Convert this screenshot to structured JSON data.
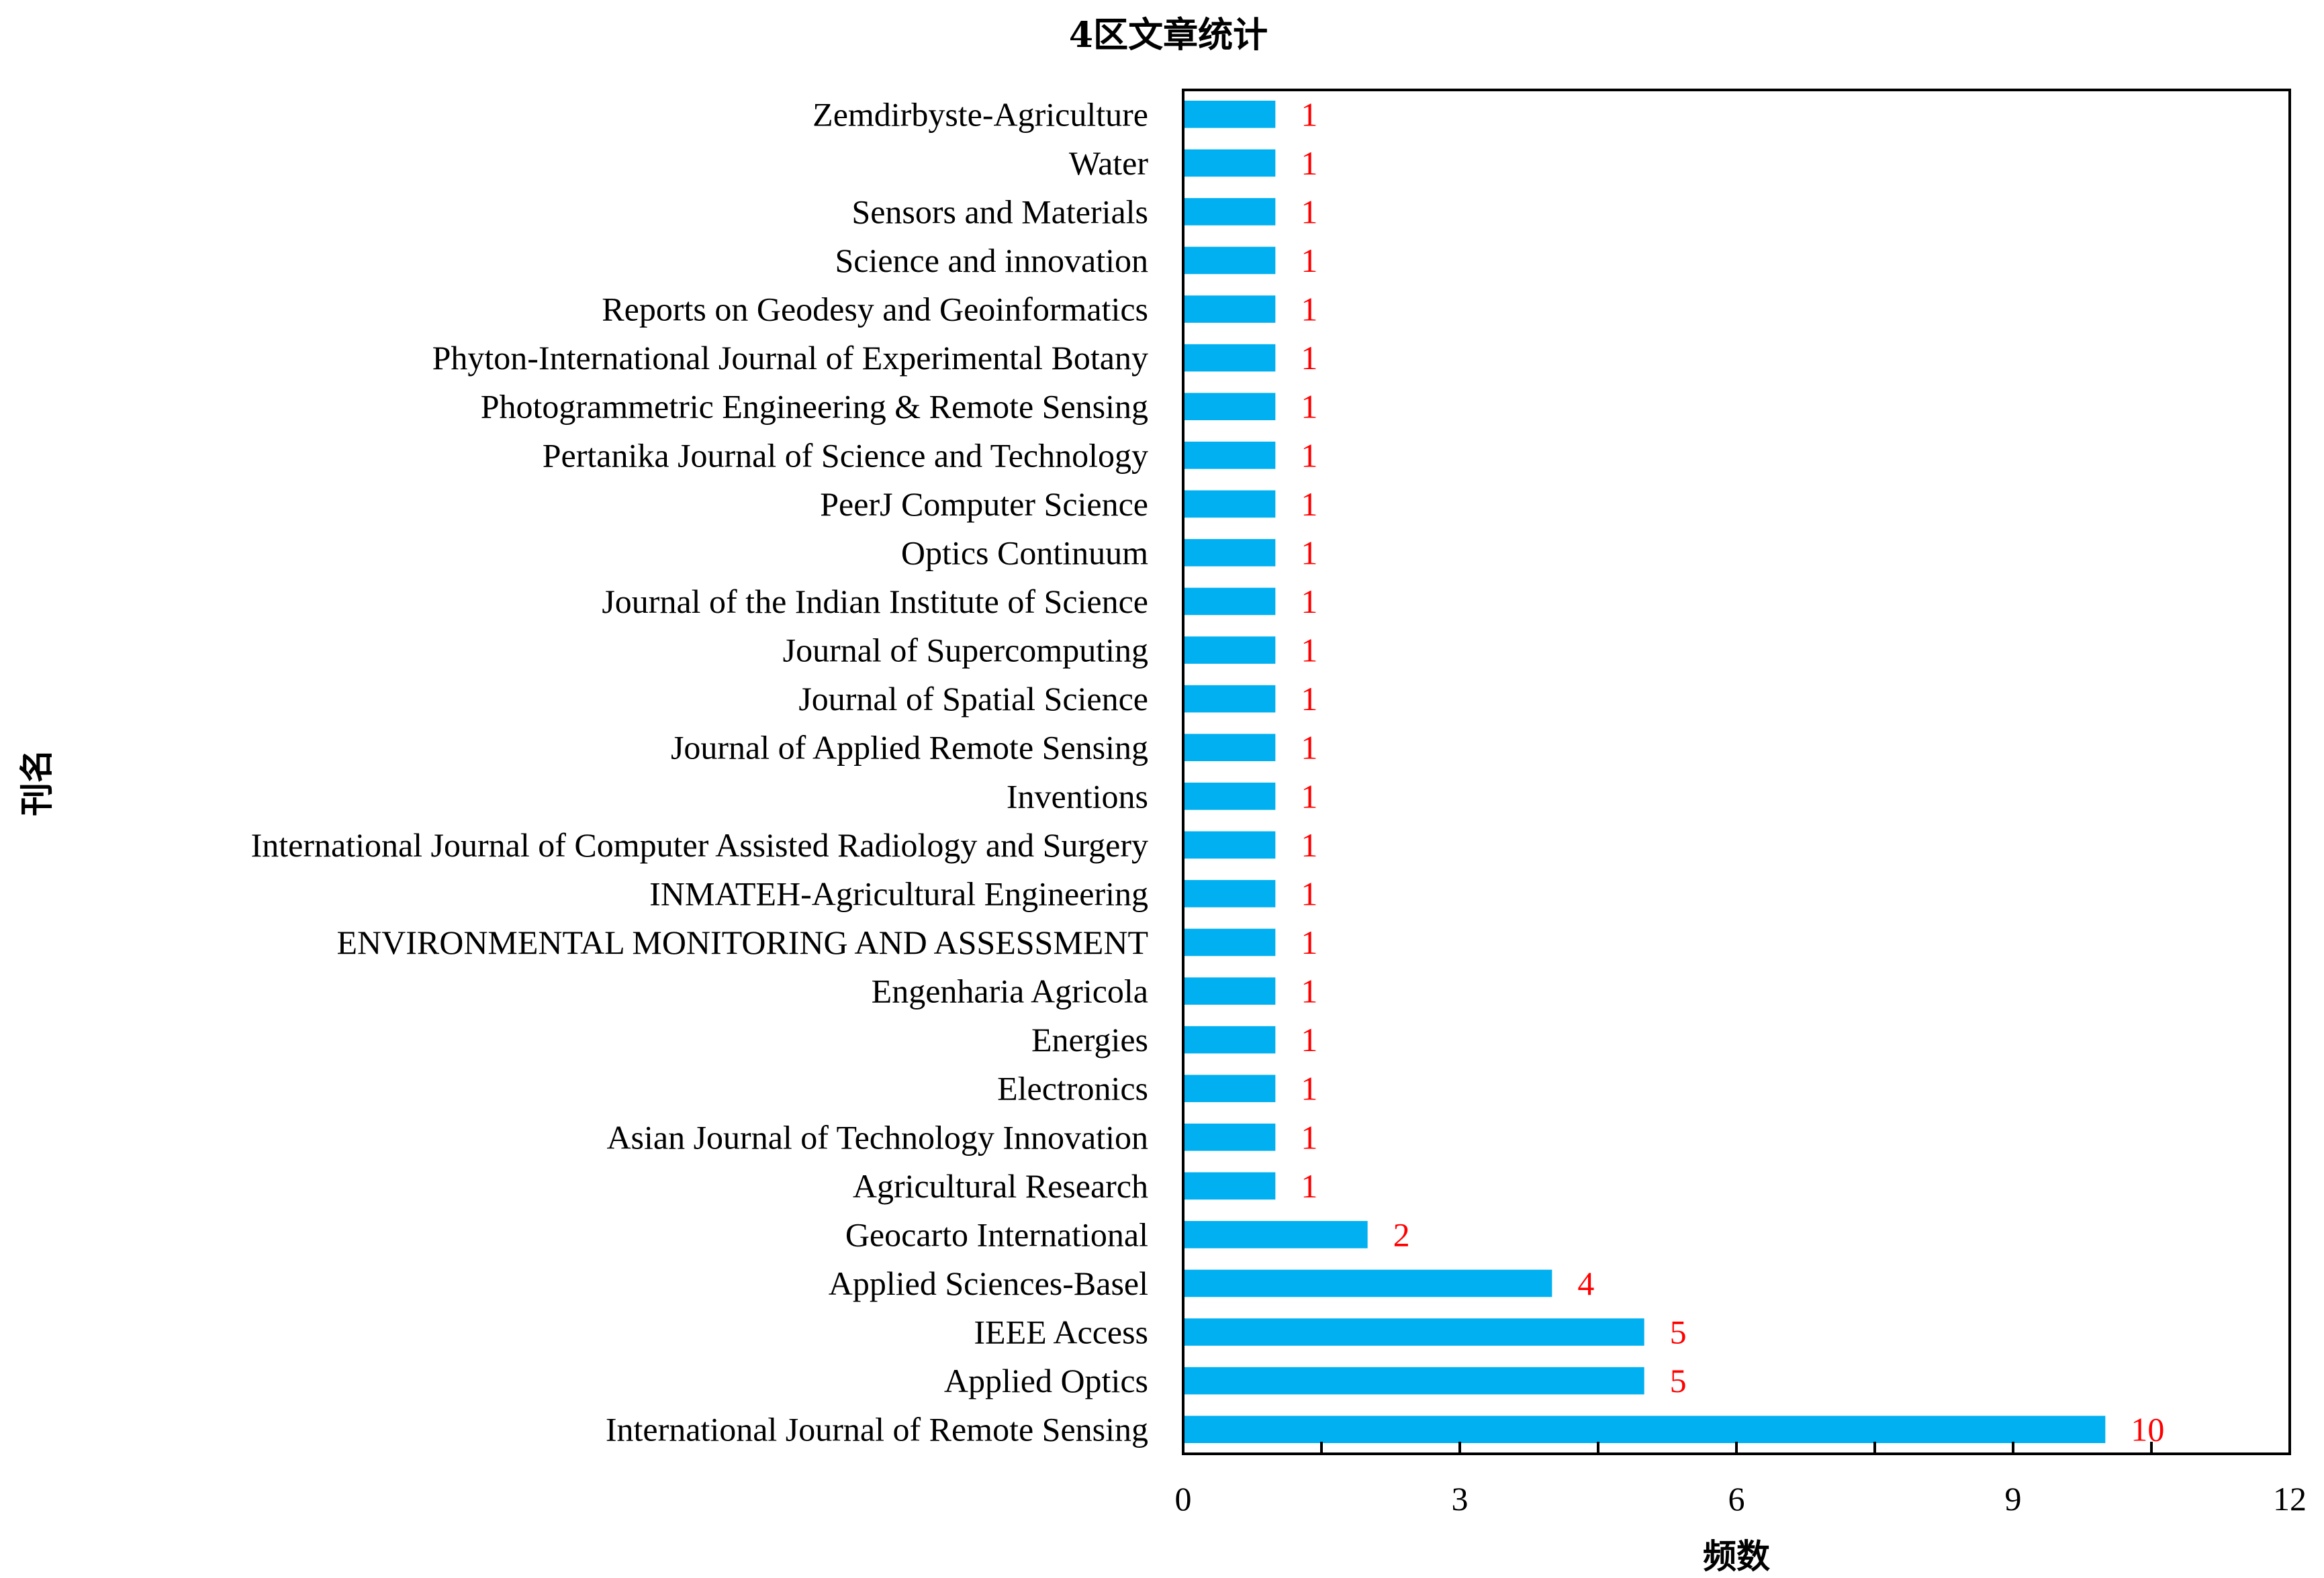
{
  "chart_data": {
    "type": "bar",
    "orientation": "horizontal",
    "title": "4区文章统计",
    "xlabel": "频数",
    "ylabel": "刊名",
    "xlim": [
      0,
      12
    ],
    "xticks": [
      0,
      3,
      6,
      9,
      12
    ],
    "grid": false,
    "legend": "none",
    "bar_color": "#00b0f0",
    "label_color": "#ff0000",
    "categories": [
      "International Journal of Remote Sensing",
      "Applied Optics",
      "IEEE Access",
      "Applied Sciences-Basel",
      "Geocarto International",
      "Agricultural Research",
      "Asian Journal of Technology Innovation",
      "Electronics",
      "Energies",
      "Engenharia Agricola",
      "ENVIRONMENTAL MONITORING AND ASSESSMENT",
      "INMATEH-Agricultural Engineering",
      "International Journal of Computer Assisted Radiology and Surgery",
      "Inventions",
      "Journal of Applied Remote Sensing",
      "Journal of Spatial Science",
      "Journal of Supercomputing",
      "Journal of the Indian Institute of Science",
      "Optics Continuum",
      "PeerJ Computer Science",
      "Pertanika Journal of Science and Technology",
      "Photogrammetric Engineering & Remote Sensing",
      "Phyton-International Journal of Experimental Botany",
      "Reports on Geodesy and Geoinformatics",
      "Science and innovation",
      "Sensors and Materials",
      "Water",
      "Zemdirbyste-Agriculture"
    ],
    "values": [
      10,
      5,
      5,
      4,
      2,
      1,
      1,
      1,
      1,
      1,
      1,
      1,
      1,
      1,
      1,
      1,
      1,
      1,
      1,
      1,
      1,
      1,
      1,
      1,
      1,
      1,
      1,
      1
    ]
  }
}
